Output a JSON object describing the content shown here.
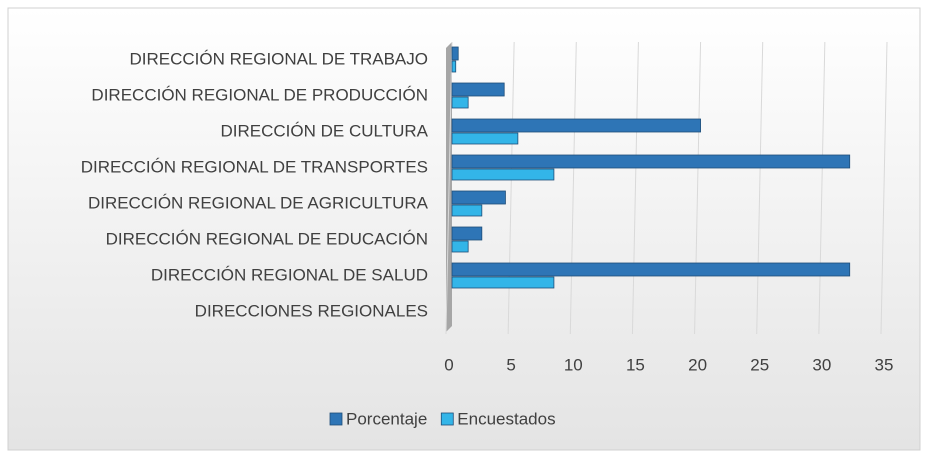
{
  "chart_data": {
    "type": "bar",
    "orientation": "horizontal",
    "categories": [
      "DIRECCIÓN REGIONAL DE TRABAJO",
      "DIRECCIÓN REGIONAL DE PRODUCCIÓN",
      "DIRECCIÓN DE CULTURA",
      "DIRECCIÓN REGIONAL DE TRANSPORTES",
      "DIRECCIÓN REGIONAL DE AGRICULTURA",
      "DIRECCIÓN REGIONAL DE EDUCACIÓN",
      "DIRECCIÓN REGIONAL DE SALUD",
      "DIRECCIONES REGIONALES"
    ],
    "series": [
      {
        "name": "Porcentaje",
        "color": "#2e75b6",
        "values": [
          0.5,
          4.2,
          20,
          32,
          4.3,
          2.4,
          32,
          null
        ]
      },
      {
        "name": "Encuestados",
        "color": "#33b5e8",
        "values": [
          0.3,
          1.3,
          5.3,
          8.2,
          2.4,
          1.3,
          8.2,
          null
        ]
      }
    ],
    "xlim": [
      0,
      35
    ],
    "xticks": [
      0,
      5,
      10,
      15,
      20,
      25,
      30,
      35
    ],
    "grid": true,
    "legend": "bottom"
  }
}
